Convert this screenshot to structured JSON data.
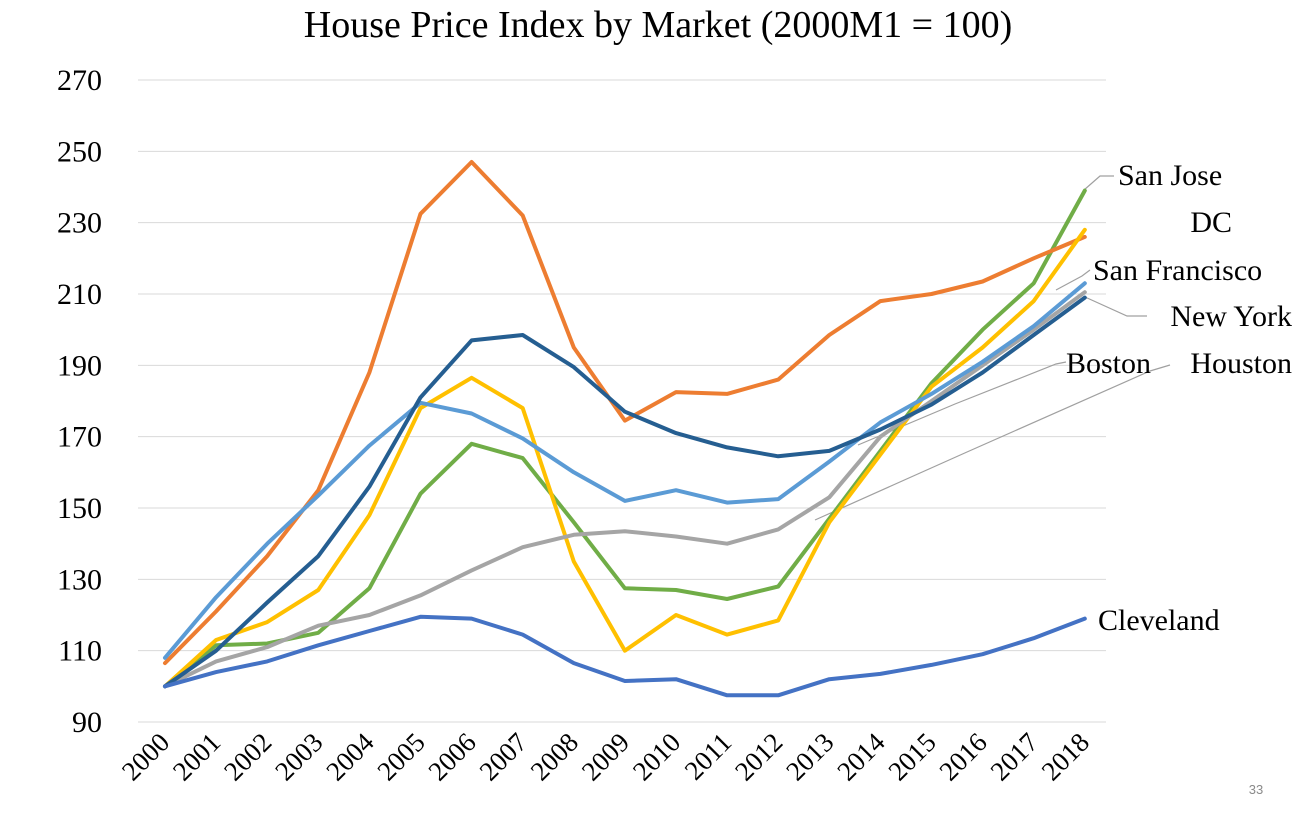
{
  "slide": {
    "page_number": "33"
  },
  "chart_data": {
    "type": "line",
    "title": "House Price Index by Market (2000M1 = 100)",
    "xlabel": "",
    "ylabel": "",
    "categories": [
      "2000",
      "2001",
      "2002",
      "2003",
      "2004",
      "2005",
      "2006",
      "2007",
      "2008",
      "2009",
      "2010",
      "2011",
      "2012",
      "2013",
      "2014",
      "2015",
      "2016",
      "2017",
      "2018"
    ],
    "ylim": [
      90,
      270
    ],
    "yticks": [
      90,
      110,
      130,
      150,
      170,
      190,
      210,
      230,
      250,
      270
    ],
    "grid": true,
    "legend": "none (series labeled at right end of lines)",
    "series": [
      {
        "name": "San Jose",
        "color": "#70AD47",
        "values": [
          100,
          111.5,
          112,
          115,
          127.5,
          154,
          168,
          164,
          146,
          127.5,
          127,
          124.5,
          128,
          147,
          166,
          185,
          200,
          213,
          239
        ]
      },
      {
        "name": "DC",
        "color": "#ED7D31",
        "values": [
          106.5,
          121,
          136.5,
          155,
          188,
          232.5,
          247,
          232,
          195,
          174.5,
          182.5,
          182,
          186,
          198.5,
          208,
          210,
          213.5,
          220,
          226
        ]
      },
      {
        "name": "San Francisco",
        "color": "#FFC000",
        "values": [
          100,
          113,
          118,
          127,
          148,
          178,
          186.5,
          178,
          135,
          110,
          120,
          114.5,
          118.5,
          146,
          165,
          184,
          195,
          208,
          228
        ]
      },
      {
        "name": "New York",
        "color": "#A5A5A5",
        "values": [
          100,
          107,
          111,
          117,
          120,
          125.5,
          132.5,
          139,
          142.5,
          143.5,
          142,
          140,
          144,
          153,
          170,
          180,
          190,
          200,
          210.5
        ]
      },
      {
        "name": "Boston",
        "color": "#5B9BD5",
        "values": [
          108,
          125,
          140,
          153.5,
          167.5,
          179.5,
          176.5,
          169.5,
          160,
          152,
          155,
          151.5,
          152.5,
          163,
          174,
          182,
          191,
          201,
          213
        ]
      },
      {
        "name": "Houston",
        "color": "#255E91",
        "values": [
          100,
          110,
          123.5,
          136.5,
          156,
          181,
          197,
          198.5,
          189.5,
          177,
          171,
          167,
          164.5,
          166,
          172,
          179,
          188,
          198.5,
          209
        ]
      },
      {
        "name": "Cleveland",
        "color": "#4472C4",
        "values": [
          100,
          104,
          107,
          111.5,
          115.5,
          119.5,
          119,
          114.5,
          106.5,
          101.5,
          102,
          97.5,
          97.5,
          102,
          103.5,
          106,
          109,
          113.5,
          119
        ]
      }
    ],
    "annotations": [
      {
        "text": "San Jose"
      },
      {
        "text": "DC"
      },
      {
        "text": "San Francisco"
      },
      {
        "text": "New York"
      },
      {
        "text": "Boston"
      },
      {
        "text": "Houston"
      },
      {
        "text": "Cleveland"
      }
    ]
  }
}
